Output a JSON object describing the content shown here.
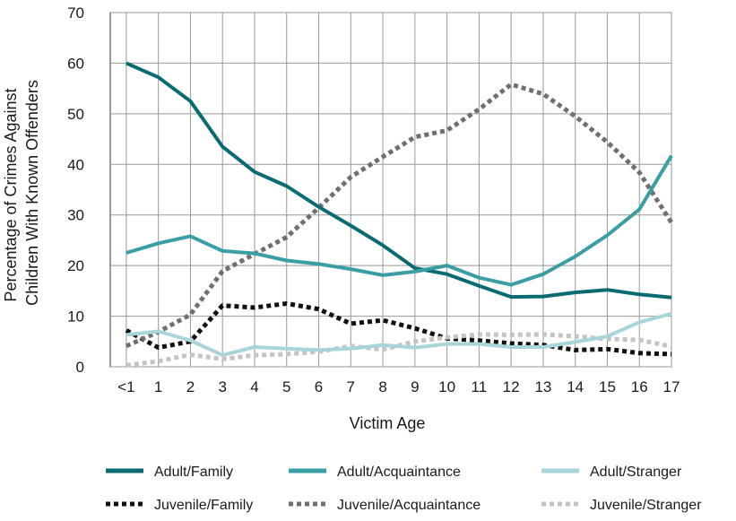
{
  "chart_data": {
    "type": "line",
    "title": "",
    "xlabel": "Victim Age",
    "ylabel_lines": [
      "Percentage of Crimes Against",
      "Children With Known Offenders"
    ],
    "categories": [
      "<1",
      "1",
      "2",
      "3",
      "4",
      "5",
      "6",
      "7",
      "8",
      "9",
      "10",
      "11",
      "12",
      "13",
      "14",
      "15",
      "16",
      "17"
    ],
    "ylim": [
      0,
      70
    ],
    "yticks": [
      0,
      10,
      20,
      30,
      40,
      50,
      60,
      70
    ],
    "grid": true,
    "legend_position": "bottom",
    "series": [
      {
        "name": "Adult/Family",
        "color": "#0a6b73",
        "style": "solid",
        "values": [
          60,
          57.2,
          52.5,
          43.5,
          38.5,
          35.7,
          31.6,
          27.9,
          24.0,
          19.5,
          18.3,
          16.0,
          13.8,
          13.9,
          14.7,
          15.2,
          14.3,
          13.7
        ]
      },
      {
        "name": "Adult/Acquaintance",
        "color": "#3a9ea5",
        "style": "solid",
        "values": [
          22.5,
          24.4,
          25.8,
          22.9,
          22.4,
          21.0,
          20.3,
          19.3,
          18.1,
          18.8,
          20.0,
          17.6,
          16.2,
          18.3,
          21.8,
          26.0,
          31.1,
          41.7
        ]
      },
      {
        "name": "Adult/Stranger",
        "color": "#a9d4da",
        "style": "solid",
        "values": [
          6.3,
          7.0,
          5.2,
          2.3,
          3.9,
          3.6,
          3.3,
          3.6,
          4.3,
          3.8,
          4.5,
          4.5,
          3.9,
          3.9,
          4.9,
          6.0,
          8.8,
          10.5
        ]
      },
      {
        "name": "Juvenile/Family",
        "color": "#111111",
        "style": "dotted",
        "values": [
          7.2,
          3.8,
          5.0,
          12.1,
          11.7,
          12.5,
          11.4,
          8.5,
          9.2,
          7.6,
          5.6,
          5.2,
          4.6,
          4.3,
          3.3,
          3.5,
          2.7,
          2.5
        ]
      },
      {
        "name": "Juvenile/Acquaintance",
        "color": "#6f6f6f",
        "style": "dotted",
        "values": [
          4.1,
          6.9,
          10.3,
          18.9,
          22.3,
          25.6,
          31.4,
          37.5,
          41.5,
          45.4,
          46.7,
          50.9,
          55.8,
          53.9,
          49.5,
          44.4,
          38.4,
          28.5
        ]
      },
      {
        "name": "Juvenile/Stranger",
        "color": "#c4c4c4",
        "style": "dotted",
        "values": [
          0.3,
          1.1,
          2.4,
          1.5,
          2.3,
          2.5,
          3.0,
          4.1,
          3.4,
          5.0,
          5.8,
          6.4,
          6.3,
          6.4,
          6.0,
          5.5,
          5.3,
          4.0
        ]
      }
    ]
  }
}
